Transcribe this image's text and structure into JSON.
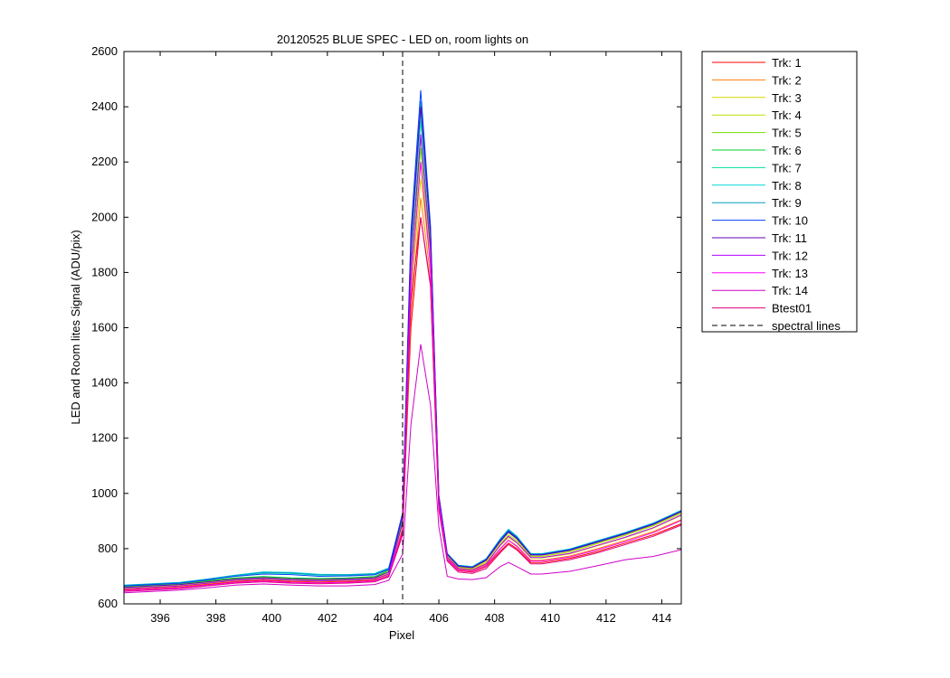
{
  "chart_data": {
    "type": "line",
    "title": "20120525 BLUE SPEC - LED on, room lights on",
    "xlabel": "Pixel",
    "ylabel": "LED and Room lites Signal (ADU/pix)",
    "xlim": [
      394.7,
      414.7
    ],
    "ylim": [
      600,
      2600
    ],
    "xticks": [
      396,
      398,
      400,
      402,
      404,
      406,
      408,
      410,
      412,
      414
    ],
    "yticks": [
      600,
      800,
      1000,
      1200,
      1400,
      1600,
      1800,
      2000,
      2200,
      2400,
      2600
    ],
    "grid": false,
    "legend_position": "outside-right",
    "x": [
      394.7,
      395.7,
      396.7,
      397.7,
      398.7,
      399.7,
      400.7,
      401.7,
      402.7,
      403.7,
      404.2,
      404.7,
      405.0,
      405.35,
      405.7,
      406.0,
      406.3,
      406.7,
      407.2,
      407.7,
      408.2,
      408.5,
      408.8,
      409.3,
      409.7,
      410.7,
      411.7,
      412.7,
      413.7,
      414.7
    ],
    "spectral_lines": [
      404.7
    ],
    "series": [
      {
        "name": "Trk: 1",
        "color": "#ff0000",
        "values": [
          650,
          655,
          660,
          670,
          680,
          685,
          680,
          678,
          680,
          685,
          700,
          860,
          1600,
          2000,
          1750,
          950,
          760,
          720,
          715,
          735,
          790,
          820,
          800,
          750,
          750,
          765,
          790,
          820,
          850,
          890
        ]
      },
      {
        "name": "Trk: 2",
        "color": "#ff7f00",
        "values": [
          653,
          658,
          663,
          673,
          683,
          688,
          683,
          681,
          683,
          688,
          705,
          870,
          1650,
          2070,
          1790,
          960,
          765,
          725,
          720,
          742,
          800,
          830,
          810,
          758,
          758,
          773,
          800,
          830,
          862,
          905
        ]
      },
      {
        "name": "Trk: 3",
        "color": "#d8d800",
        "values": [
          656,
          661,
          666,
          676,
          686,
          691,
          686,
          684,
          686,
          691,
          710,
          880,
          1700,
          2140,
          1830,
          970,
          770,
          730,
          725,
          749,
          810,
          840,
          820,
          766,
          766,
          781,
          810,
          840,
          874,
          920
        ]
      },
      {
        "name": "Trk: 4",
        "color": "#b8e000",
        "values": [
          659,
          664,
          669,
          679,
          689,
          694,
          689,
          687,
          689,
          694,
          715,
          890,
          1750,
          2200,
          1860,
          980,
          775,
          733,
          728,
          754,
          818,
          850,
          828,
          772,
          772,
          788,
          818,
          848,
          882,
          928
        ]
      },
      {
        "name": "Trk: 5",
        "color": "#70e000",
        "values": [
          662,
          667,
          672,
          682,
          692,
          697,
          692,
          690,
          692,
          697,
          720,
          900,
          1800,
          2250,
          1880,
          985,
          778,
          735,
          730,
          758,
          824,
          858,
          834,
          776,
          776,
          792,
          822,
          852,
          886,
          932
        ]
      },
      {
        "name": "Trk: 6",
        "color": "#00d030",
        "values": [
          664,
          669,
          674,
          684,
          694,
          699,
          694,
          692,
          694,
          699,
          722,
          905,
          1830,
          2290,
          1900,
          988,
          780,
          737,
          732,
          760,
          828,
          862,
          838,
          778,
          778,
          795,
          825,
          855,
          889,
          935
        ]
      },
      {
        "name": "Trk: 7",
        "color": "#00e0a0",
        "values": [
          666,
          671,
          676,
          688,
          702,
          712,
          710,
          704,
          704,
          708,
          728,
          915,
          1880,
          2350,
          1930,
          990,
          782,
          739,
          734,
          762,
          832,
          866,
          842,
          780,
          780,
          797,
          827,
          857,
          891,
          937
        ]
      },
      {
        "name": "Trk: 8",
        "color": "#00d8d8",
        "values": [
          668,
          673,
          678,
          690,
          704,
          716,
          714,
          707,
          706,
          710,
          730,
          920,
          1900,
          2380,
          1950,
          992,
          783,
          740,
          735,
          764,
          835,
          870,
          845,
          782,
          782,
          799,
          829,
          859,
          893,
          939
        ]
      },
      {
        "name": "Trk: 9",
        "color": "#00a0c0",
        "values": [
          667,
          672,
          677,
          689,
          703,
          714,
          712,
          705,
          705,
          709,
          729,
          925,
          1920,
          2420,
          1960,
          993,
          782,
          739,
          734,
          763,
          834,
          868,
          844,
          781,
          781,
          798,
          828,
          858,
          892,
          938
        ]
      },
      {
        "name": "Trk: 10",
        "color": "#0040ff",
        "values": [
          665,
          670,
          675,
          687,
          700,
          708,
          706,
          700,
          701,
          705,
          725,
          930,
          1950,
          2460,
          1970,
          994,
          781,
          738,
          733,
          761,
          831,
          864,
          840,
          779,
          779,
          796,
          826,
          856,
          890,
          936
        ]
      },
      {
        "name": "Trk: 11",
        "color": "#6000c0",
        "values": [
          660,
          665,
          670,
          680,
          690,
          695,
          690,
          688,
          690,
          695,
          715,
          920,
          1900,
          2400,
          1940,
          990,
          779,
          736,
          731,
          758,
          826,
          860,
          836,
          777,
          777,
          794,
          824,
          854,
          888,
          934
        ]
      },
      {
        "name": "Trk: 12",
        "color": "#b000ff",
        "values": [
          655,
          660,
          665,
          675,
          685,
          690,
          685,
          683,
          685,
          690,
          708,
          895,
          1820,
          2300,
          1880,
          975,
          770,
          728,
          723,
          745,
          812,
          845,
          822,
          768,
          768,
          783,
          812,
          842,
          876,
          922
        ]
      },
      {
        "name": "Trk: 13",
        "color": "#ff00ff",
        "values": [
          648,
          653,
          658,
          668,
          678,
          683,
          678,
          676,
          678,
          683,
          702,
          870,
          1750,
          2200,
          1820,
          960,
          762,
          722,
          717,
          738,
          798,
          830,
          808,
          755,
          755,
          770,
          796,
          826,
          858,
          902
        ]
      },
      {
        "name": "Trk: 14",
        "color": "#d000c8",
        "values": [
          640,
          645,
          650,
          658,
          668,
          672,
          668,
          665,
          665,
          670,
          685,
          780,
          1250,
          1540,
          1320,
          880,
          700,
          690,
          688,
          695,
          735,
          750,
          735,
          708,
          708,
          718,
          738,
          760,
          772,
          796
        ]
      },
      {
        "name": "Btest01",
        "color": "#e0007a",
        "values": [
          645,
          650,
          655,
          665,
          675,
          680,
          675,
          673,
          675,
          680,
          698,
          850,
          1700,
          2000,
          1760,
          940,
          755,
          715,
          710,
          728,
          785,
          815,
          795,
          745,
          745,
          760,
          785,
          815,
          845,
          885
        ]
      }
    ],
    "spectral_lines_label": "spectral lines"
  }
}
